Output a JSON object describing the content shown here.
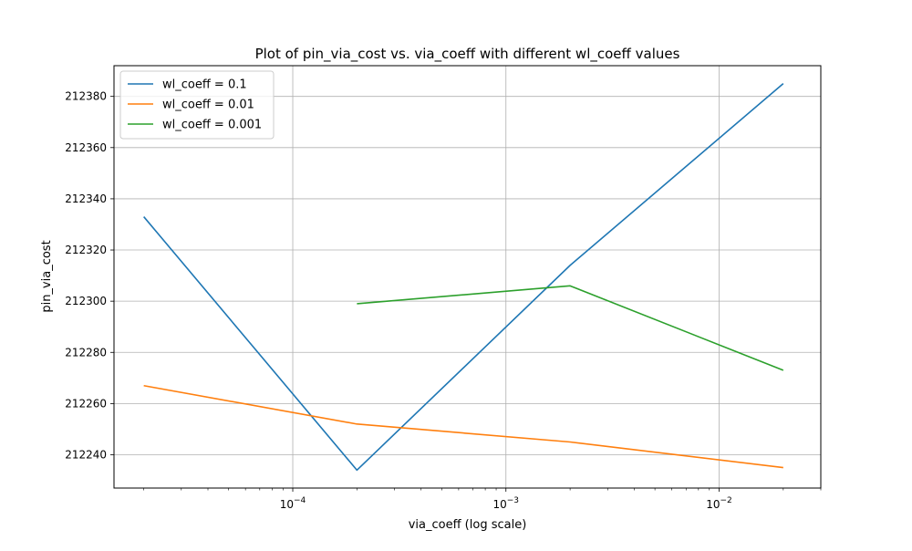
{
  "chart_data": {
    "type": "line",
    "title": "Plot of pin_via_cost vs. via_coeff with different wl_coeff values",
    "xlabel": "via_coeff (log scale)",
    "ylabel": "pin_via_cost",
    "xscale": "log",
    "xlim": [
      1.45e-05,
      0.03
    ],
    "ylim": [
      212227,
      212392
    ],
    "grid": true,
    "legend_position": "upper-left",
    "x_ticks": [
      {
        "value": 0.0001,
        "base": "10",
        "exp": "−4"
      },
      {
        "value": 0.001,
        "base": "10",
        "exp": "−3"
      },
      {
        "value": 0.01,
        "base": "10",
        "exp": "−2"
      }
    ],
    "y_ticks": [
      {
        "value": 212240,
        "label": "212240"
      },
      {
        "value": 212260,
        "label": "212260"
      },
      {
        "value": 212280,
        "label": "212280"
      },
      {
        "value": 212300,
        "label": "212300"
      },
      {
        "value": 212320,
        "label": "212320"
      },
      {
        "value": 212340,
        "label": "212340"
      },
      {
        "value": 212360,
        "label": "212360"
      },
      {
        "value": 212380,
        "label": "212380"
      }
    ],
    "series": [
      {
        "name": "wl_coeff = 0.1",
        "color": "#1f77b4",
        "x": [
          2e-05,
          0.0002,
          0.002,
          0.02
        ],
        "y": [
          212333,
          212234,
          212314,
          212385
        ]
      },
      {
        "name": "wl_coeff = 0.01",
        "color": "#ff7f0e",
        "x": [
          2e-05,
          0.0002,
          0.002,
          0.02
        ],
        "y": [
          212267,
          212252,
          212245,
          212235
        ]
      },
      {
        "name": "wl_coeff = 0.001",
        "color": "#2ca02c",
        "x": [
          0.0002,
          0.002,
          0.02
        ],
        "y": [
          212299,
          212306,
          212273
        ]
      }
    ]
  }
}
